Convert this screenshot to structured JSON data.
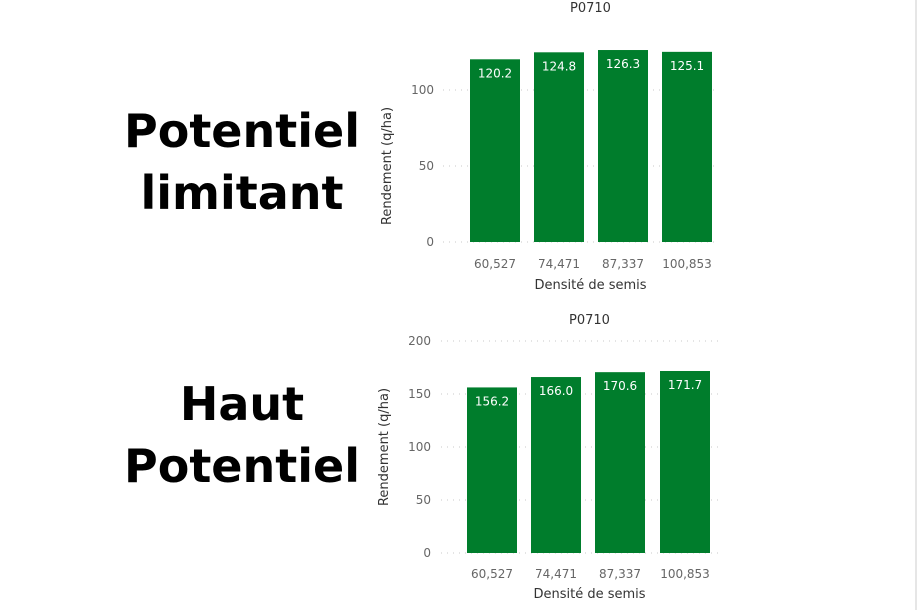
{
  "labels": {
    "top": [
      "Potentiel",
      "limitant"
    ],
    "bottom": [
      "Haut",
      "Potentiel"
    ]
  },
  "chart_data": [
    {
      "type": "bar",
      "title": "P0710",
      "xlabel": "Densité de semis",
      "ylabel": "Rendement (q/ha)",
      "categories": [
        "60,527",
        "74,471",
        "87,337",
        "100,853"
      ],
      "values": [
        120.2,
        124.8,
        126.3,
        125.1
      ],
      "data_labels": [
        "120.2",
        "124.8",
        "126.3",
        "125.1"
      ],
      "yticks": [
        0,
        50,
        100
      ],
      "ylim": [
        0,
        130
      ],
      "grid": "dotted horizontal",
      "color": "#007d2c"
    },
    {
      "type": "bar",
      "title": "P0710",
      "xlabel": "Densité de semis",
      "ylabel": "Rendement (q/ha)",
      "categories": [
        "60,527",
        "74,471",
        "87,337",
        "100,853"
      ],
      "values": [
        156.2,
        166.0,
        170.6,
        171.7
      ],
      "data_labels": [
        "156.2",
        "166.0",
        "170.6",
        "171.7"
      ],
      "yticks": [
        0,
        50,
        100,
        150,
        200
      ],
      "ylim": [
        0,
        200
      ],
      "grid": "dotted horizontal",
      "color": "#007d2c"
    }
  ]
}
